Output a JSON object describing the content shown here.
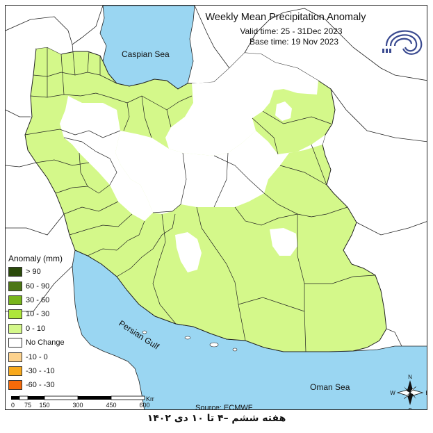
{
  "title": "Weekly Mean Precipitation Anomaly",
  "valid_time": "Valid time: 25 - 31Dec 2023",
  "base_time": "Base time: 19 Nov 2023",
  "sea_labels": {
    "caspian": "Caspian Sea",
    "persian_gulf": "Persian Gulf",
    "oman": "Oman Sea"
  },
  "legend": {
    "title": "Anomaly (mm)",
    "items": [
      {
        "label": "> 90",
        "color": "#2b4a0b"
      },
      {
        "label": "60 - 90",
        "color": "#4d7716"
      },
      {
        "label": "30 - 60",
        "color": "#78b51c"
      },
      {
        "label": "10 - 30",
        "color": "#aee63a"
      },
      {
        "label": "0 - 10",
        "color": "#d4f88a"
      },
      {
        "label": "No Change",
        "color": "#ffffff"
      },
      {
        "label": "-10 - 0",
        "color": "#fcd28e"
      },
      {
        "label": "-30 - -10",
        "color": "#f8a91c"
      },
      {
        "label": "-60 - -30",
        "color": "#f56a0a"
      }
    ]
  },
  "scale": {
    "labels": [
      "0",
      "75",
      "150",
      "300",
      "450",
      "600"
    ],
    "unit": "Km"
  },
  "source": "Source: ECMWF",
  "compass": {
    "n": "N",
    "s": "S",
    "e": "E",
    "w": "W"
  },
  "footer": "هفته ششم –۴ تا ۱۰ دی ۱۴۰۲",
  "colors": {
    "sea": "#9ad6f2",
    "land_anomaly": "#d4f88a",
    "no_change": "#ffffff",
    "border": "#222222"
  }
}
